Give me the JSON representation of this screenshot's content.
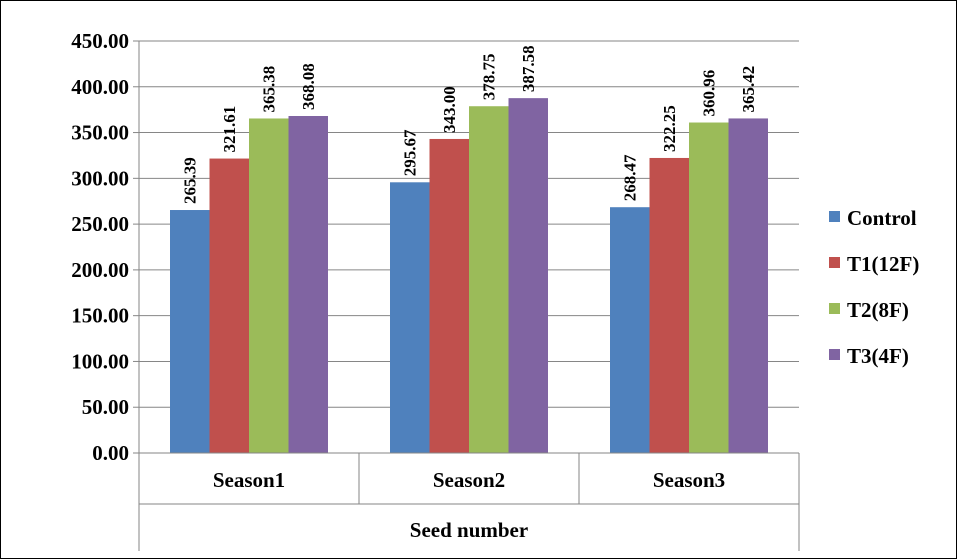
{
  "chart_data": {
    "type": "bar",
    "categories": [
      "Season1",
      "Season2",
      "Season3"
    ],
    "group_title": "Seed number",
    "series": [
      {
        "name": "Control",
        "color": "#4F81BD",
        "values": [
          265.39,
          295.67,
          268.47
        ],
        "labels": [
          "265.39",
          "295.67",
          "268.47"
        ]
      },
      {
        "name": "T1(12F)",
        "color": "#C0504D",
        "values": [
          321.61,
          343.0,
          322.25
        ],
        "labels": [
          "321.61",
          "343.00",
          "322.25"
        ]
      },
      {
        "name": "T2(8F)",
        "color": "#9BBB59",
        "values": [
          365.38,
          378.75,
          360.96
        ],
        "labels": [
          "365.38",
          "378.75",
          "360.96"
        ]
      },
      {
        "name": "T3(4F)",
        "color": "#8064A2",
        "values": [
          368.08,
          387.58,
          365.42
        ],
        "labels": [
          "368.08",
          "387.58",
          "365.42"
        ]
      }
    ],
    "y_ticks": [
      "0.00",
      "50.00",
      "100.00",
      "150.00",
      "200.00",
      "250.00",
      "300.00",
      "350.00",
      "400.00",
      "450.00"
    ],
    "ylim": [
      0,
      450
    ],
    "grid": true,
    "legend_position": "right"
  }
}
